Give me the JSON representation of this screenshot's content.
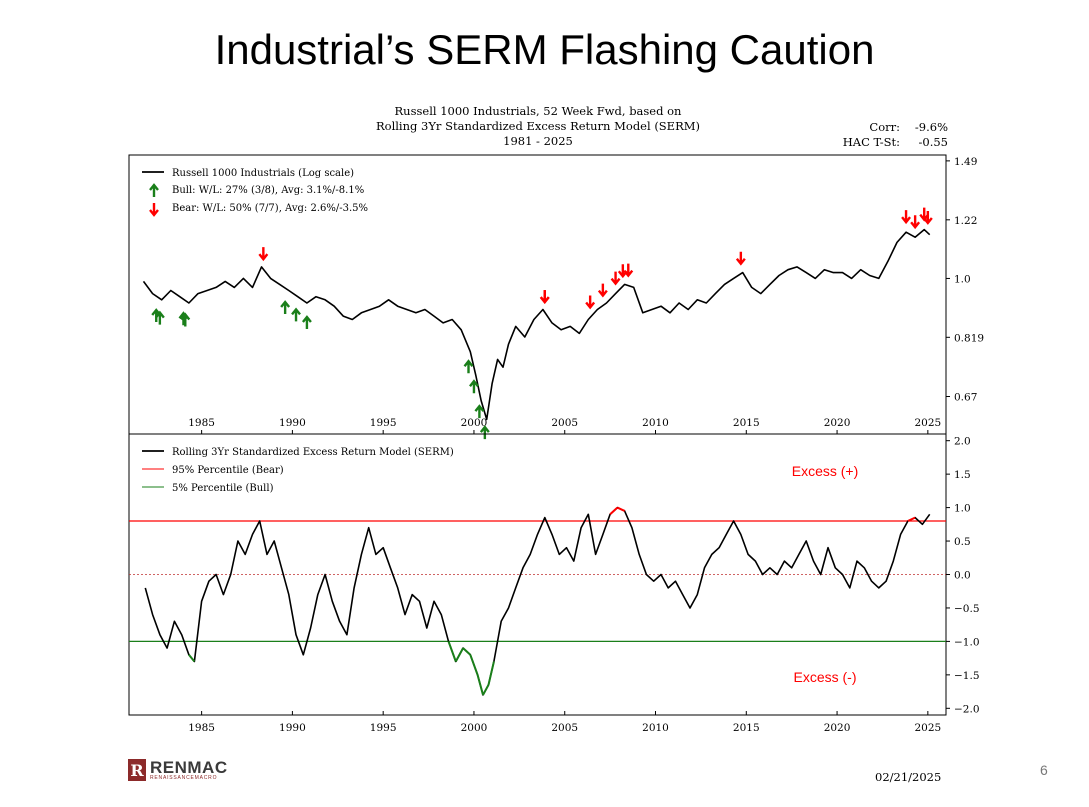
{
  "slide": {
    "title": "Industrial’s SERM Flashing Caution",
    "page_number": "6",
    "date": "02/21/2025",
    "logo_main": "RENMAC",
    "logo_sub": "RENAISSANCEMACRO",
    "logo_letter": "R"
  },
  "chart_header": {
    "line1": "Russell 1000 Industrials, 52 Week Fwd, based on",
    "line2": "Rolling 3Yr Standardized Excess Return Model (SERM)",
    "line3": "1981 - 2025",
    "corr_label": "Corr:",
    "corr_value": "-9.6%",
    "tstat_label": "HAC T-St:",
    "tstat_value": "-0.55"
  },
  "colors": {
    "series": "#000000",
    "bear": "#ff0000",
    "bull": "#1a7f1a",
    "bear_fill": "#f7b0b0",
    "bull_fill": "#a8d8a8"
  },
  "chart_data": [
    {
      "type": "line",
      "ylog": true,
      "xlim": [
        1981,
        2026
      ],
      "ylim": [
        0.59,
        1.52
      ],
      "x_ticks": [
        1985,
        1990,
        1995,
        2000,
        2005,
        2010,
        2015,
        2020,
        2025
      ],
      "x_tick_labels": [
        "1985",
        "1990",
        "1995",
        "2000",
        "2005",
        "2010",
        "2015",
        "2020",
        "2025"
      ],
      "y_ticks": [
        1.49,
        1.22,
        1.0,
        0.819,
        0.67
      ],
      "y_tick_labels": [
        "1.49",
        "1.22",
        "1.0",
        "0.819",
        "0.67"
      ],
      "legend": {
        "placement": "top-left",
        "series_label": "Russell 1000 Industrials (Log scale)",
        "bull_label": "Bull:  W/L: 27% (3/8), Avg: 3.1%/-8.1%",
        "bear_label": "Bear:  W/L: 50% (7/7), Avg: 2.6%/-3.5%"
      },
      "series": [
        {
          "name": "Russell 1000 Industrials (Log scale)",
          "x": [
            1981.8,
            1982.3,
            1982.8,
            1983.3,
            1983.8,
            1984.3,
            1984.8,
            1985.3,
            1985.8,
            1986.3,
            1986.8,
            1987.3,
            1987.8,
            1988.3,
            1988.8,
            1989.3,
            1989.8,
            1990.3,
            1990.8,
            1991.3,
            1991.8,
            1992.3,
            1992.8,
            1993.3,
            1993.8,
            1994.3,
            1994.8,
            1995.3,
            1995.8,
            1996.3,
            1996.8,
            1997.3,
            1997.8,
            1998.3,
            1998.8,
            1999.3,
            1999.8,
            2000.1,
            2000.4,
            2000.7,
            2001.0,
            2001.3,
            2001.6,
            2001.9,
            2002.3,
            2002.8,
            2003.3,
            2003.8,
            2004.3,
            2004.8,
            2005.3,
            2005.8,
            2006.3,
            2006.8,
            2007.3,
            2007.8,
            2008.3,
            2008.8,
            2009.3,
            2009.8,
            2010.3,
            2010.8,
            2011.3,
            2011.8,
            2012.3,
            2012.8,
            2013.3,
            2013.8,
            2014.3,
            2014.8,
            2015.3,
            2015.8,
            2016.3,
            2016.8,
            2017.3,
            2017.8,
            2018.3,
            2018.8,
            2019.3,
            2019.8,
            2020.3,
            2020.8,
            2021.3,
            2021.8,
            2022.3,
            2022.8,
            2023.3,
            2023.8,
            2024.3,
            2024.8,
            2025.1
          ],
          "y": [
            0.99,
            0.95,
            0.93,
            0.96,
            0.94,
            0.92,
            0.95,
            0.96,
            0.97,
            0.99,
            0.97,
            1.0,
            0.97,
            1.04,
            1.0,
            0.98,
            0.96,
            0.94,
            0.92,
            0.94,
            0.93,
            0.91,
            0.88,
            0.87,
            0.89,
            0.9,
            0.91,
            0.93,
            0.91,
            0.9,
            0.89,
            0.9,
            0.88,
            0.86,
            0.87,
            0.84,
            0.78,
            0.72,
            0.66,
            0.62,
            0.7,
            0.76,
            0.74,
            0.8,
            0.85,
            0.82,
            0.87,
            0.9,
            0.86,
            0.84,
            0.85,
            0.83,
            0.87,
            0.9,
            0.92,
            0.95,
            0.98,
            0.97,
            0.89,
            0.9,
            0.91,
            0.89,
            0.92,
            0.9,
            0.93,
            0.92,
            0.95,
            0.98,
            1.0,
            1.02,
            0.97,
            0.95,
            0.98,
            1.01,
            1.03,
            1.04,
            1.02,
            1.0,
            1.03,
            1.02,
            1.02,
            1.0,
            1.03,
            1.01,
            1.0,
            1.06,
            1.13,
            1.17,
            1.15,
            1.18,
            1.16
          ]
        }
      ],
      "bull_signals": [
        1982.5,
        1982.7,
        1984.0,
        1984.1,
        1989.6,
        1990.2,
        1990.8,
        1999.7,
        2000.0,
        2000.3,
        2000.6
      ],
      "bear_signals": [
        1988.4,
        2003.9,
        2003.9,
        2006.4,
        2007.1,
        2007.8,
        2008.2,
        2008.5,
        2014.7,
        2023.8,
        2024.3,
        2024.8,
        2025.0
      ],
      "annotations": []
    },
    {
      "type": "line",
      "xlim": [
        1981,
        2026
      ],
      "ylim": [
        -2.1,
        2.1
      ],
      "x_ticks": [
        1985,
        1990,
        1995,
        2000,
        2005,
        2010,
        2015,
        2020,
        2025
      ],
      "x_tick_labels": [
        "1985",
        "1990",
        "1995",
        "2000",
        "2005",
        "2010",
        "2015",
        "2020",
        "2025"
      ],
      "y_ticks": [
        2.0,
        1.5,
        1.0,
        0.5,
        0.0,
        -0.5,
        -1.0,
        -1.5,
        -2.0
      ],
      "y_tick_labels": [
        "2.0",
        "1.5",
        "1.0",
        "0.5",
        "0.0",
        "−0.5",
        "−1.0",
        "−1.5",
        "−2.0"
      ],
      "legend": {
        "placement": "top-left",
        "series_label": "Rolling 3Yr Standardized Excess Return Model (SERM)",
        "bear_label": "95% Percentile (Bear)",
        "bull_label": "5% Percentile (Bull)"
      },
      "thresholds": {
        "bear": 0.8,
        "bull": -1.0,
        "zero": 0.0
      },
      "series": [
        {
          "name": "Rolling 3Yr Standardized Excess Return Model (SERM)",
          "x": [
            1981.9,
            1982.3,
            1982.7,
            1983.1,
            1983.5,
            1983.9,
            1984.3,
            1984.6,
            1985.0,
            1985.4,
            1985.8,
            1986.2,
            1986.6,
            1987.0,
            1987.4,
            1987.8,
            1988.2,
            1988.6,
            1989.0,
            1989.4,
            1989.8,
            1990.2,
            1990.6,
            1991.0,
            1991.4,
            1991.8,
            1992.2,
            1992.6,
            1993.0,
            1993.4,
            1993.8,
            1994.2,
            1994.6,
            1995.0,
            1995.4,
            1995.8,
            1996.2,
            1996.6,
            1997.0,
            1997.4,
            1997.8,
            1998.2,
            1998.6,
            1999.0,
            1999.4,
            1999.8,
            2000.2,
            2000.5,
            2000.8,
            2001.1,
            2001.5,
            2001.9,
            2002.3,
            2002.7,
            2003.1,
            2003.5,
            2003.9,
            2004.3,
            2004.7,
            2005.1,
            2005.5,
            2005.9,
            2006.3,
            2006.7,
            2007.1,
            2007.5,
            2007.9,
            2008.3,
            2008.7,
            2009.1,
            2009.5,
            2009.9,
            2010.3,
            2010.7,
            2011.1,
            2011.5,
            2011.9,
            2012.3,
            2012.7,
            2013.1,
            2013.5,
            2013.9,
            2014.3,
            2014.7,
            2015.1,
            2015.5,
            2015.9,
            2016.3,
            2016.7,
            2017.1,
            2017.5,
            2017.9,
            2018.3,
            2018.7,
            2019.1,
            2019.5,
            2019.9,
            2020.3,
            2020.7,
            2021.1,
            2021.5,
            2021.9,
            2022.3,
            2022.7,
            2023.1,
            2023.5,
            2023.9,
            2024.3,
            2024.7,
            2025.1
          ],
          "y": [
            -0.2,
            -0.6,
            -0.9,
            -1.1,
            -0.7,
            -0.9,
            -1.2,
            -1.3,
            -0.4,
            -0.1,
            0.0,
            -0.3,
            0.0,
            0.5,
            0.3,
            0.6,
            0.8,
            0.3,
            0.5,
            0.1,
            -0.3,
            -0.9,
            -1.2,
            -0.8,
            -0.3,
            0.0,
            -0.4,
            -0.7,
            -0.9,
            -0.2,
            0.3,
            0.7,
            0.3,
            0.4,
            0.1,
            -0.2,
            -0.6,
            -0.3,
            -0.4,
            -0.8,
            -0.4,
            -0.6,
            -1.0,
            -1.3,
            -1.1,
            -1.2,
            -1.5,
            -1.8,
            -1.65,
            -1.3,
            -0.7,
            -0.5,
            -0.2,
            0.1,
            0.3,
            0.6,
            0.85,
            0.6,
            0.3,
            0.4,
            0.2,
            0.7,
            0.9,
            0.3,
            0.6,
            0.9,
            1.0,
            0.95,
            0.7,
            0.3,
            0.0,
            -0.1,
            0.0,
            -0.2,
            -0.1,
            -0.3,
            -0.5,
            -0.3,
            0.1,
            0.3,
            0.4,
            0.6,
            0.8,
            0.6,
            0.3,
            0.2,
            0.0,
            0.1,
            0.0,
            0.2,
            0.1,
            0.3,
            0.5,
            0.2,
            0.0,
            0.4,
            0.1,
            0.0,
            -0.2,
            0.2,
            0.1,
            -0.1,
            -0.2,
            -0.1,
            0.2,
            0.6,
            0.8,
            0.85,
            0.75,
            0.9
          ]
        }
      ],
      "annotations": [
        {
          "text": "Excess (+)",
          "color": "#ff0000"
        },
        {
          "text": "Excess (-)",
          "color": "#ff0000"
        }
      ]
    }
  ]
}
